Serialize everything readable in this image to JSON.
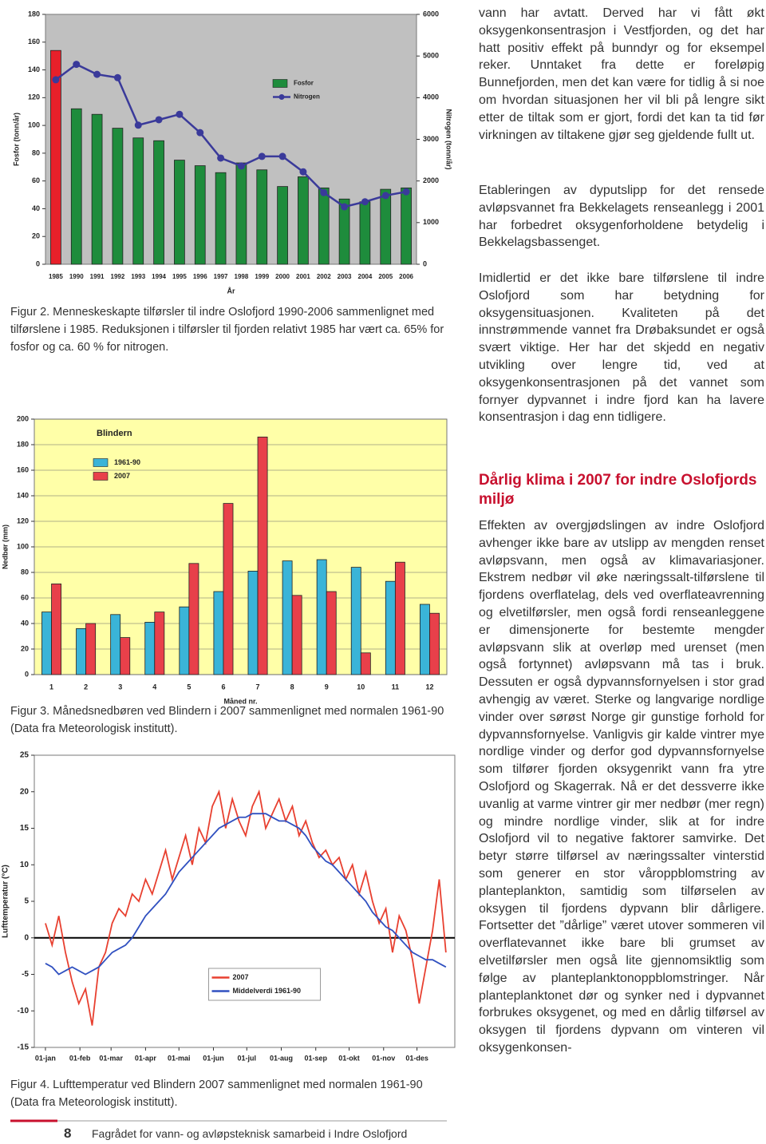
{
  "chart_data": [
    {
      "type": "bar",
      "ylabel": "Fosfor (tonn/år)",
      "y2label": "Nitrogen (tonn/år)",
      "xlabel": "År",
      "categories": [
        "1985",
        "1990",
        "1991",
        "1992",
        "1993",
        "1994",
        "1995",
        "1996",
        "1997",
        "1998",
        "1999",
        "2000",
        "2001",
        "2002",
        "2003",
        "2004",
        "2005",
        "2006"
      ],
      "series": [
        {
          "name": "Fosfor",
          "color": "#1e8c3c",
          "colors": [
            "#e8202a",
            "#1e8c3c",
            "#1e8c3c",
            "#1e8c3c",
            "#1e8c3c",
            "#1e8c3c",
            "#1e8c3c",
            "#1e8c3c",
            "#1e8c3c",
            "#1e8c3c",
            "#1e8c3c",
            "#1e8c3c",
            "#1e8c3c",
            "#1e8c3c",
            "#1e8c3c",
            "#1e8c3c",
            "#1e8c3c",
            "#1e8c3c"
          ],
          "values": [
            154,
            112,
            108,
            98,
            91,
            89,
            75,
            71,
            66,
            73,
            68,
            56,
            63,
            55,
            47,
            45,
            54,
            55
          ]
        },
        {
          "name": "Nitrogen",
          "type": "line",
          "axis": "y2",
          "color": "#3a3a9a",
          "values": [
            4430,
            4800,
            4560,
            4480,
            3340,
            3470,
            3600,
            3160,
            2550,
            2360,
            2590,
            2590,
            2220,
            1720,
            1380,
            1500,
            1650,
            1740
          ]
        }
      ],
      "ylim": [
        0,
        180
      ],
      "yticks": [
        0,
        20,
        40,
        60,
        80,
        100,
        120,
        140,
        160,
        180
      ],
      "y2lim": [
        0,
        6000
      ],
      "y2ticks": [
        0,
        1000,
        2000,
        3000,
        4000,
        5000,
        6000
      ],
      "grid": false,
      "background": "#c0c0c0",
      "legend": "upper-right"
    },
    {
      "type": "bar",
      "title": "Blindern",
      "ylabel": "Nedbør (mm)",
      "xlabel": "Måned nr.",
      "categories": [
        "1",
        "2",
        "3",
        "4",
        "5",
        "6",
        "7",
        "8",
        "9",
        "10",
        "11",
        "12"
      ],
      "series": [
        {
          "name": "1961-90",
          "color": "#3ab4d8",
          "values": [
            49,
            36,
            47,
            41,
            53,
            65,
            81,
            89,
            90,
            84,
            73,
            55
          ]
        },
        {
          "name": "2007",
          "color": "#e8404a",
          "values": [
            71,
            40,
            29,
            49,
            87,
            134,
            186,
            62,
            65,
            17,
            88,
            48
          ]
        }
      ],
      "ylim": [
        0,
        200
      ],
      "yticks": [
        0,
        20,
        40,
        60,
        80,
        100,
        120,
        140,
        160,
        180,
        200
      ],
      "grid": true,
      "background": "#ffffa8",
      "legend": "upper-left"
    },
    {
      "type": "line",
      "ylabel": "Lufttemperatur (°C)",
      "x": [
        1,
        7,
        13,
        19,
        25,
        31,
        37,
        43,
        49,
        55,
        61,
        67,
        73,
        79,
        85,
        91,
        97,
        103,
        109,
        115,
        121,
        127,
        133,
        139,
        145,
        151,
        157,
        163,
        169,
        175,
        181,
        187,
        193,
        199,
        205,
        211,
        217,
        223,
        229,
        235,
        241,
        247,
        253,
        259,
        265,
        271,
        277,
        283,
        289,
        295,
        301,
        307,
        313,
        319,
        325,
        331,
        337,
        343,
        349,
        355,
        361
      ],
      "series": [
        {
          "name": "2007",
          "color": "#e84030",
          "values": [
            2,
            -1,
            3,
            -2,
            -6,
            -9,
            -7,
            -12,
            -4,
            -2,
            2,
            4,
            3,
            6,
            5,
            8,
            6,
            9,
            12,
            8,
            11,
            14,
            10,
            15,
            13,
            18,
            20,
            15,
            19,
            16,
            14,
            18,
            20,
            15,
            17,
            19,
            16,
            18,
            14,
            16,
            13,
            11,
            12,
            10,
            11,
            8,
            10,
            6,
            9,
            5,
            2,
            4,
            -2,
            3,
            1,
            -3,
            -9,
            -4,
            1,
            8,
            -2
          ]
        },
        {
          "name": "Middelverdi 1961-90",
          "color": "#3050c0",
          "values": [
            -3.5,
            -4,
            -5,
            -4.5,
            -4,
            -4.5,
            -5,
            -4.5,
            -4,
            -3,
            -2,
            -1.5,
            -1,
            0,
            1.5,
            3,
            4,
            5,
            6,
            7.5,
            9,
            10,
            11,
            12,
            13,
            14,
            15,
            15.5,
            16,
            16.5,
            16.5,
            17,
            17,
            17,
            16.5,
            16,
            16,
            15.5,
            15,
            14,
            12.5,
            11.5,
            10.5,
            10,
            9,
            8,
            7,
            6,
            5,
            3.5,
            2.5,
            1.5,
            1,
            0,
            -1,
            -2,
            -2.5,
            -3,
            -3,
            -3.5,
            -4
          ]
        }
      ],
      "xlim": [
        -9,
        369
      ],
      "xticks": [
        {
          "value": 1,
          "label": "01-jan"
        },
        {
          "value": 32,
          "label": "01-feb"
        },
        {
          "value": 60,
          "label": "01-mar"
        },
        {
          "value": 91,
          "label": "01-apr"
        },
        {
          "value": 121,
          "label": "01-mai"
        },
        {
          "value": 152,
          "label": "01-jun"
        },
        {
          "value": 182,
          "label": "01-jul"
        },
        {
          "value": 213,
          "label": "01-aug"
        },
        {
          "value": 244,
          "label": "01-sep"
        },
        {
          "value": 274,
          "label": "01-okt"
        },
        {
          "value": 305,
          "label": "01-nov"
        },
        {
          "value": 335,
          "label": "01-des"
        }
      ],
      "ylim": [
        -15,
        25
      ],
      "yticks": [
        -15,
        -10,
        -5,
        0,
        5,
        10,
        15,
        20,
        25
      ],
      "grid": false,
      "background": "#ffffff",
      "legend": "lower-center"
    }
  ],
  "captions": [
    "Figur 2. Menneskeskapte tilførsler til indre Oslofjord 1990-2006 sammenlignet med tilførslene i 1985. Reduksjonen i tilførsler til fjorden relativt 1985 har vært ca. 65% for fosfor og ca. 60 % for nitrogen.",
    "Figur 3. Månedsnedbøren ved Blindern i 2007 sammenlignet med normalen 1961-90 (Data fra Meteorologisk institutt).",
    "Figur 4. Lufttemperatur ved Blindern 2007 sammenlignet med normalen 1961-90 (Data fra Meteorologisk institutt)."
  ],
  "body": {
    "paragraphs": [
      "vann har avtatt. Derved har vi fått økt oksygenkonsentrasjon i Vestfjorden, og det har hatt positiv effekt på bunndyr og for eksempel reker. Unntaket fra dette er foreløpig Bunnefjorden, men det kan være for tidlig å si noe om hvordan situasjonen her vil bli på lengre sikt etter de tiltak som er gjort, fordi det kan ta tid før virkningen av tiltakene gjør seg gjeldende fullt ut.",
      "Etableringen av dyputslipp for det rensede avløpsvannet fra Bekkelagets renseanlegg i 2001 har forbedret oksygenforholdene betydelig i Bekkelagsbassenget.",
      "Imidlertid er det ikke bare tilførslene til indre Oslofjord som har betydning for oksygensituasjonen. Kvaliteten på det innstrømmende vannet fra Drøbaksundet er også svært viktige. Her har det skjedd en negativ utvikling over lengre tid, ved at oksygenkonsentrasjonen på det vannet som fornyer dypvannet i indre fjord kan ha lavere konsentrasjon i dag enn tidligere."
    ],
    "heading": "Dårlig klima i 2007 for indre Oslofjords miljø",
    "section": "Effekten av overgjødslingen av indre Oslofjord avhenger ikke bare av utslipp av mengden renset avløpsvann, men også av klimavariasjoner. Ekstrem nedbør vil øke næringssalt-tilførslene til fjordens overflatelag, dels ved overflateavrenning og elvetilførsler, men også fordi renseanleggene er dimensjonerte for bestemte mengder avløpsvann slik at overløp med urenset (men også fortynnet) avløpsvann må tas i bruk. Dessuten er også dypvannsfornyelsen i stor grad avhengig av været. Sterke og langvarige nordlige vinder over sørøst Norge gir gunstige forhold for dypvannsfornyelse. Vanligvis gir kalde vintrer mye nordlige vinder og derfor god dypvannsfornyelse som tilfører fjorden oksygenrikt vann fra ytre Oslofjord og Skagerrak. Nå er det dessverre ikke uvanlig at varme vintrer gir mer nedbør (mer regn) og mindre nordlige vinder, slik at for indre Oslofjord vil to negative faktorer samvirke. Det betyr større tilførsel av næringssalter vinterstid som generer en stor våroppblomstring av planteplankton, samtidig som tilførselen av oksygen til fjordens dypvann blir dårligere. Fortsetter det ”dårlige” været utover sommeren vil overflatevannet ikke bare bli grumset av elvetilførsler men også lite gjennomsiktlig som følge av planteplanktonoppblomstringer. Når planteplanktonet dør og synker ned i dypvannet forbrukes oksygenet, og med en dårlig tilførsel av oksygen til fjordens dypvann om vinteren vil oksygenkonsen-"
  },
  "footer": {
    "page": "8",
    "text": "Fagrådet for vann- og avløpsteknisk samarbeid i Indre Oslofjord"
  }
}
